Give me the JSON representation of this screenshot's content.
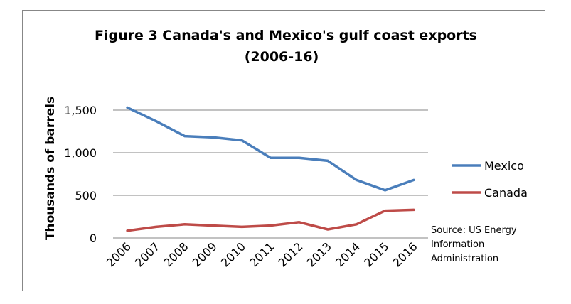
{
  "chart_data": {
    "type": "line",
    "title_line1": "Figure 3 Canada's and Mexico's gulf coast exports",
    "title_line2": "(2006-16)",
    "ylabel": "Thousands of barrels",
    "xlabel": "",
    "x": [
      "2006",
      "2007",
      "2008",
      "2009",
      "2010",
      "2011",
      "2012",
      "2013",
      "2014",
      "2015",
      "2016"
    ],
    "ylim": [
      0,
      1800
    ],
    "yticks": [
      0,
      500,
      1000,
      1500
    ],
    "ytick_labels": [
      "0",
      "500",
      "1,000",
      "1,500"
    ],
    "grid": true,
    "legend_position": "right",
    "series": [
      {
        "name": "Mexico",
        "color": "#4a7ebb",
        "values": [
          1530,
          1370,
          1195,
          1180,
          1145,
          940,
          940,
          905,
          680,
          560,
          680
        ]
      },
      {
        "name": "Canada",
        "color": "#be4b48",
        "values": [
          85,
          130,
          160,
          145,
          130,
          145,
          185,
          100,
          160,
          320,
          330
        ]
      }
    ],
    "source_lines": [
      "Source: US Energy",
      "Information",
      "Administration"
    ]
  }
}
